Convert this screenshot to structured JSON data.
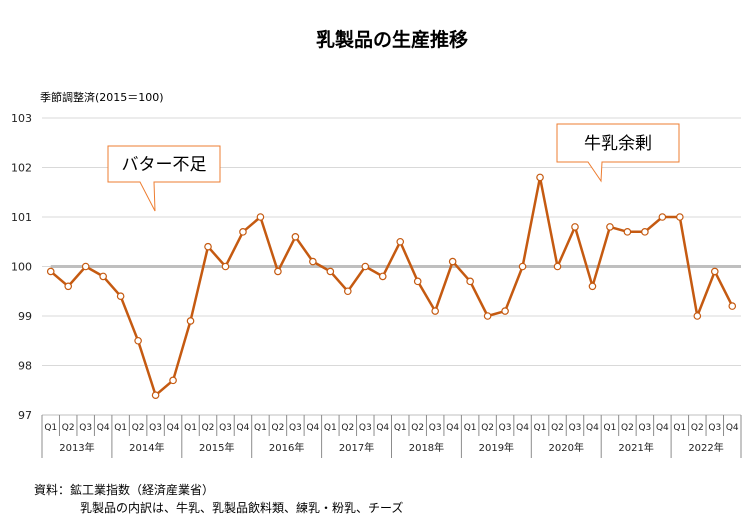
{
  "chart_data": {
    "type": "line",
    "title": "乳製品の生産推移",
    "ylabel": "季節調整済(2015＝100)",
    "ylim": [
      97,
      103
    ],
    "yticks": [
      97,
      98,
      99,
      100,
      101,
      102,
      103
    ],
    "grid": true,
    "reference_line": 100,
    "quarter_labels": [
      "Q1",
      "Q2",
      "Q3",
      "Q4"
    ],
    "years": [
      "2013年",
      "2014年",
      "2015年",
      "2016年",
      "2017年",
      "2018年",
      "2019年",
      "2020年",
      "2021年",
      "2022年"
    ],
    "series": [
      {
        "color": "#c55a11",
        "values": [
          99.9,
          99.6,
          100.0,
          99.8,
          99.4,
          98.5,
          97.4,
          97.7,
          98.9,
          100.4,
          100.0,
          100.7,
          101.0,
          99.9,
          100.6,
          100.1,
          99.9,
          99.5,
          100.0,
          99.8,
          100.5,
          99.7,
          99.1,
          100.1,
          99.7,
          99.0,
          99.1,
          100.0,
          101.8,
          100.0,
          100.8,
          99.6,
          100.8,
          100.7,
          100.7,
          101.0,
          101.0,
          99.0,
          99.9,
          99.2
        ]
      }
    ],
    "annotations": [
      {
        "text": "バター不足",
        "at_index": 6
      },
      {
        "text": "牛乳余剰",
        "at_index": 29
      }
    ],
    "colors": {
      "line": "#c55a11",
      "reference": "#bfbfbf",
      "grid": "#d9d9d9",
      "callout_border": "#ed7d31"
    }
  },
  "footer": {
    "source": "資料：鉱工業指数（経済産業省）",
    "note": "乳製品の内訳は、牛乳、乳製品飲料類、練乳・粉乳、チーズ"
  }
}
